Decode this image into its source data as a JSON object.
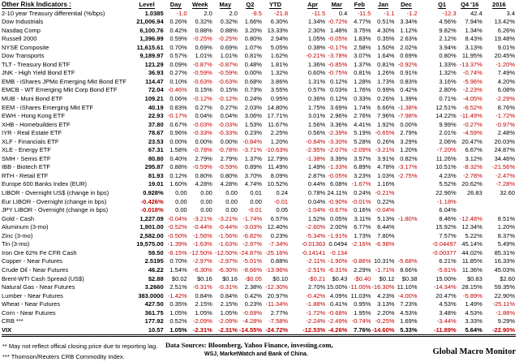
{
  "chart_data": {
    "type": "table",
    "title": "Other Risk Indicators :",
    "columns": [
      "Level",
      "Day",
      "Week",
      "May",
      "Q2",
      "YTD",
      "Apr",
      "Mar",
      "Feb",
      "Jan",
      "Dec",
      "Q1",
      "Q4 '16",
      "2016"
    ],
    "rows": [
      {
        "name": "2-10 year Treasury differential (%/bps)",
        "values": [
          "1.0385",
          "-1.0",
          "2.0",
          "2.0",
          "-9.5",
          "-21.8",
          "-11.5",
          "0.4",
          "-11.5",
          "-1.1",
          "-1.2",
          "-12.3",
          "42.4",
          "3.4"
        ]
      },
      {
        "name": "Dow Industrials",
        "values": [
          "21,006.94",
          "0.26%",
          "0.32%",
          "0.32%",
          "1.66%",
          "6.30%",
          "1.34%",
          "-0.72%",
          "4.77%",
          "0.51%",
          "3.34%",
          "4.56%",
          "7.94%",
          "13.42%"
        ]
      },
      {
        "name": "Nasdaq Comp",
        "values": [
          "6,100.76",
          "0.42%",
          "0.88%",
          "0.88%",
          "3.20%",
          "13.33%",
          "2.30%",
          "1.48%",
          "3.75%",
          "4.30%",
          "1.12%",
          "9.82%",
          "1.34%",
          "6.26%"
        ]
      },
      {
        "name": "Russell 2000",
        "values": [
          "1,396.99",
          "0.59%",
          "-0.25%",
          "-0.25%",
          "0.80%",
          "2.94%",
          "1.05%",
          "-0.05%",
          "1.83%",
          "0.35%",
          "2.63%",
          "2.12%",
          "8.43%",
          "19.48%"
        ]
      },
      {
        "name": "NYSE Composite",
        "values": [
          "11,615.61",
          "0.70%",
          "0.69%",
          "0.69%",
          "1.07%",
          "5.05%",
          "0.38%",
          "-0.17%",
          "2.58%",
          "1.50%",
          "2.02%",
          "3.94%",
          "3.13%",
          "9.01%"
        ]
      },
      {
        "name": "Dow Transports",
        "values": [
          "9,189.97",
          "0.57%",
          "1.01%",
          "1.01%",
          "0.81%",
          "1.62%",
          "-0.21%",
          "-3.78%",
          "3.07%",
          "1.64%",
          "0.69%",
          "0.80%",
          "11.95%",
          "20.45%"
        ]
      },
      {
        "name": "TLT - Treasury Bond ETF",
        "values": [
          "121.29",
          "0.09%",
          "-0.87%",
          "-0.87%",
          "0.48%",
          "1.81%",
          "1.36%",
          "-0.85%",
          "1.37%",
          "0.81%",
          "-0.92%",
          "1.33%",
          "-13.37%",
          "-1.20%"
        ]
      },
      {
        "name": "JNK - High Yield Bond ETF",
        "values": [
          "36.93",
          "0.27%",
          "-0.59%",
          "-0.59%",
          "0.00%",
          "1.32%",
          "0.60%",
          "-0.75%",
          "0.81%",
          "1.26%",
          "0.91%",
          "1.32%",
          "-0.74%",
          "7.49%"
        ]
      },
      {
        "name": "EMB - iShares JPMo Emerging Mkt Bond ETF",
        "values": [
          "114.47",
          "0.10%",
          "-0.63%",
          "-0.63%",
          "0.68%",
          "3.86%",
          "1.31%",
          "0.12%",
          "1.28%",
          "1.73%",
          "0.83%",
          "3.16%",
          "-5.96%",
          "4.20%"
        ]
      },
      {
        "name": "EMCB - WT Emerging Mkt Corp Bond ETF",
        "values": [
          "72.04",
          "-0.46%",
          "0.15%",
          "0.15%",
          "0.73%",
          "3.55%",
          "0.57%",
          "0.03%",
          "1.76%",
          "0.99%",
          "0.42%",
          "2.80%",
          "-2.23%",
          "6.08%"
        ]
      },
      {
        "name": "MUB - Muni Bond ETF",
        "values": [
          "109.21",
          "0.06%",
          "-0.12%",
          "-0.12%",
          "0.24%",
          "0.95%",
          "0.36%",
          "0.12%",
          "0.33%",
          "0.26%",
          "1.39%",
          "0.71%",
          "-4.05%",
          "-2.29%"
        ]
      },
      {
        "name": "EEM - iShares Emerging Mkt ETF",
        "values": [
          "40.19",
          "0.83%",
          "0.27%",
          "0.27%",
          "2.03%",
          "14.80%",
          "1.75%",
          "3.69%",
          "1.74%",
          "6.66%",
          "-1.38%",
          "12.51%",
          "-6.52%",
          "8.76%"
        ]
      },
      {
        "name": "EWH - Hong Kong ETF",
        "values": [
          "22.93",
          "-0.17%",
          "0.04%",
          "0.04%",
          "3.06%",
          "17.71%",
          "3.01%",
          "2.96%",
          "2.76%",
          "7.96%",
          "-7.98%",
          "14.22%",
          "-11.49%",
          "-1.72%"
        ]
      },
      {
        "name": "XHB - Homebuilders ETF",
        "values": [
          "37.80",
          "0.67%",
          "-0.03%",
          "-0.03%",
          "1.53%",
          "11.67%",
          "1.56%",
          "3.36%",
          "4.41%",
          "1.92%",
          "0.00%",
          "9.99%",
          "-0.27%",
          "-0.97%"
        ]
      },
      {
        "name": "IYR - Real Estate ETF",
        "values": [
          "78.67",
          "0.96%",
          "-0.33%",
          "-0.33%",
          "0.23%",
          "2.25%",
          "0.56%",
          "-2.39%",
          "5.19%",
          "-0.65%",
          "2.79%",
          "2.01%",
          "-4.59%",
          "2.48%"
        ]
      },
      {
        "name": "XLF - Financials ETF",
        "values": [
          "23.53",
          "0.00%",
          "0.00%",
          "0.00%",
          "-0.84%",
          "1.20%",
          "-0.84%",
          "-3.30%",
          "5.28%",
          "0.26%",
          "3.29%",
          "2.06%",
          "20.47%",
          "20.03%"
        ]
      },
      {
        "name": "XLE - Energy ETF",
        "values": [
          "67.31",
          "1.58%",
          "-0.78%",
          "-0.78%",
          "-3.71%",
          "-10.63%",
          "-2.95%",
          "-2.07%",
          "-2.09%",
          "-3.21%",
          "1.20%",
          "-7.20%",
          "6.67%",
          "24.87%"
        ]
      },
      {
        "name": "SMH - Semis ETF",
        "values": [
          "80.80",
          "0.40%",
          "2.79%",
          "2.79%",
          "1.37%",
          "12.79%",
          "-1.38%",
          "3.39%",
          "3.57%",
          "3.91%",
          "0.82%",
          "11.26%",
          "3.12%",
          "34.46%"
        ]
      },
      {
        "name": "IBB - Biotech ETF",
        "values": [
          "295.87",
          "0.88%",
          "-0.59%",
          "-0.59%",
          "0.89%",
          "11.49%",
          "1.49%",
          "-1.33%",
          "6.89%",
          "4.78%",
          "-3.17%",
          "10.51%",
          "-8.32%",
          "-21.56%"
        ]
      },
      {
        "name": "RTH - Retail ETF",
        "values": [
          "81.93",
          "0.12%",
          "0.80%",
          "0.80%",
          "3.70%",
          "8.09%",
          "2.87%",
          "-0.05%",
          "3.23%",
          "1.03%",
          "-2.75%",
          "4.23%",
          "-2.78%",
          "-2.47%"
        ]
      },
      {
        "name": "Europe 600 Banks Index (EUR)",
        "values": [
          "19.01",
          "1.60%",
          "4.28%",
          "4.28%",
          "4.74%",
          "10.52%",
          "0.44%",
          "6.08%",
          "-1.67%",
          "1.16%",
          "",
          "5.52%",
          "20.62%",
          "-7.28%"
        ]
      },
      {
        "name": "LIBOR - Overnight US$  (change in bps)",
        "values": [
          "0.928%",
          "0.00",
          "0.00",
          "0.00",
          "0.01",
          "0.24",
          "0.78%",
          "24.11%",
          "0.24%",
          "-0.21%",
          "",
          "22.96%",
          "26.83",
          "32.60"
        ]
      },
      {
        "name": "Eur LIBOR - Overnight (change in bps)",
        "values": [
          "-0.426%",
          "0.00",
          "0.00",
          "0.00",
          "0.00",
          "-0.01",
          "0.04%",
          "-0.90%",
          "-0.01%",
          "0.22%",
          "",
          "-1.18%",
          "",
          ""
        ]
      },
      {
        "name": "JPY LIBOR - Overnight (change in bps)",
        "values": [
          "-0.018%",
          "0.00",
          "0.00",
          "0.00",
          "-0.01",
          "0.05",
          "-1.04%",
          "-0.67%",
          "0.16%",
          "-0.04%",
          "",
          "6.04%",
          "",
          ""
        ]
      },
      {
        "name": "Gold - Cash",
        "values": [
          "1,227.09",
          "-0.04%",
          "-3.21%",
          "-3.21%",
          "-1.74%",
          "6.57%",
          "1.52%",
          "0.05%",
          "3.11%",
          "5.13%",
          "-1.80%",
          "8.46%",
          "-12.48%",
          "8.51%"
        ]
      },
      {
        "name": "Aluminum (3-mo)",
        "values": [
          "1,901.00",
          "-0.52%",
          "-0.44%",
          "-0.44%",
          "-3.03%",
          "12.40%",
          "-2.60%",
          "2.00%",
          "6.77%",
          "6.44%",
          "",
          "15.92%",
          "12.34%",
          "1.20%"
        ]
      },
      {
        "name": "Zinc (3-mo)",
        "values": [
          "2,582.00",
          "-0.50%",
          "-1.56%",
          "-1.56%",
          "-6.82%",
          "0.23%",
          "-5.34%",
          "-1.91%",
          "1.73%",
          "7.80%",
          "",
          "7.57%",
          "5.22%",
          "8.37%"
        ]
      },
      {
        "name": "Tin (3-mo)",
        "values": [
          "19,575.00",
          "-1.39%",
          "-1.63%",
          "-1.63%",
          "-2.97%",
          "-7.34%",
          "-0.01363",
          "0.0494",
          "-2.16%",
          "-6.98%",
          "",
          "-0.04497",
          "45.14%",
          "5.49%"
        ]
      },
      {
        "name": "Iron Ore 62% Fe CFR Cash",
        "values": [
          "59.50",
          "-6.15%",
          "-12.50%",
          "-12.50%",
          "-24.87%",
          "-25.16%",
          "-0.14141",
          "-0.134",
          "",
          "",
          "",
          "-0.00377",
          "44.02%",
          "85.31%"
        ]
      },
      {
        "name": "Copper - Near Futures",
        "values": [
          "2.5195",
          "0.70%",
          "-2.97%",
          "-2.97%",
          "-5.01%",
          "0.88%",
          "-2.11%",
          "-1.90%",
          "-0.86%",
          "10.31%",
          "-5.68%",
          "6.21%",
          "11.85%",
          "16.33%"
        ]
      },
      {
        "name": "Crude Oil - Near Futures",
        "values": [
          "46.22",
          "1.54%",
          "-6.30%",
          "-6.30%",
          "-8.66%",
          "-13.96%",
          "-2.51%",
          "-6.31%",
          "2.29%",
          "-1.71%",
          "8.66%",
          "-5.81%",
          "11.36%",
          "45.03%"
        ]
      },
      {
        "name": "Brent-WTI Cash Spread (US$)",
        "values": [
          "$2.88",
          "$0.02",
          "$0.16",
          "$0.16",
          "-$0.05",
          "$0.10",
          "-$0.21",
          "$0.43",
          "-$0.40",
          "$0.12",
          "$0.38",
          "15.00%",
          "$0.83",
          "$2.60"
        ]
      },
      {
        "name": "Natural Gas - Near Futures",
        "values": [
          "3.2660",
          "2.51%",
          "-0.31%",
          "-0.31%",
          "2.38%",
          "-12.30%",
          "2.70%",
          "15.00%",
          "-11.00%",
          "-16.30%",
          "11.10%",
          "-14.34%",
          "28.15%",
          "59.35%"
        ]
      },
      {
        "name": "Lumber - Near Futures",
        "values": [
          "383.0000",
          "-1.42%",
          "0.84%",
          "0.84%",
          "0.42%",
          "20.97%",
          "-0.42%",
          "4.09%",
          "11.03%",
          "4.23%",
          "-4.00%",
          "20.47%",
          "-5.89%",
          "22.90%"
        ]
      },
      {
        "name": "Wheat - Near Futures",
        "values": [
          "427.50",
          "0.35%",
          "2.15%",
          "2.15%",
          "0.23%",
          "-11.34%",
          "-1.88%",
          "0.41%",
          "0.95%",
          "3.13%",
          "7.23%",
          "4.53%",
          "1.49%",
          "-25.11%"
        ]
      },
      {
        "name": "Corn - Near Futures",
        "values": [
          "361.75",
          "1.05%",
          "1.05%",
          "1.05%",
          "-0.69%",
          "2.77%",
          "-1.72%",
          "-0.68%",
          "1.95%",
          "2.20%",
          "4.53%",
          "3.48%",
          "4.53%",
          "-1.88%"
        ]
      },
      {
        "name": "CRB ***",
        "values": [
          "177.92",
          "0.52%",
          "-2.09%",
          "-2.09%",
          "-4.28%",
          "-7.58%",
          "-2.24%",
          "-2.49%",
          "-0.74%",
          "-0.25%",
          "1.69%",
          "-3.44%",
          "3.33%",
          "9.29%"
        ]
      },
      {
        "name": "VIX",
        "bold": true,
        "values": [
          "10.57",
          "1.05%",
          "-2.31%",
          "-2.31%",
          "-14.55%",
          "-24.72%",
          "-12.53%",
          "-4.26%",
          "7.76%",
          "-14.60%",
          "5.33%",
          "-11.89%",
          "5.64%",
          "-22.90%"
        ]
      }
    ],
    "layout_hint": "negative values shown in red; gaps after YTD and Dec columns; double rule under VIX row"
  },
  "footer": {
    "footnote_1": "**  May not reflect offical closing price due to reporting lag.",
    "footnote_2": "*** Thomson/Reuters CRB Commodity Index.",
    "data_sources_line_1": "Data Sources:  Bloomberg,  Yahoo Finance, investing.com,",
    "data_sources_line_2": "WSJ, MarketWatch and Bank of China.",
    "brand": "Global Macro Monitor"
  },
  "colors": {
    "negative": "#c00000",
    "text": "#000000",
    "background": "#ffffff"
  }
}
